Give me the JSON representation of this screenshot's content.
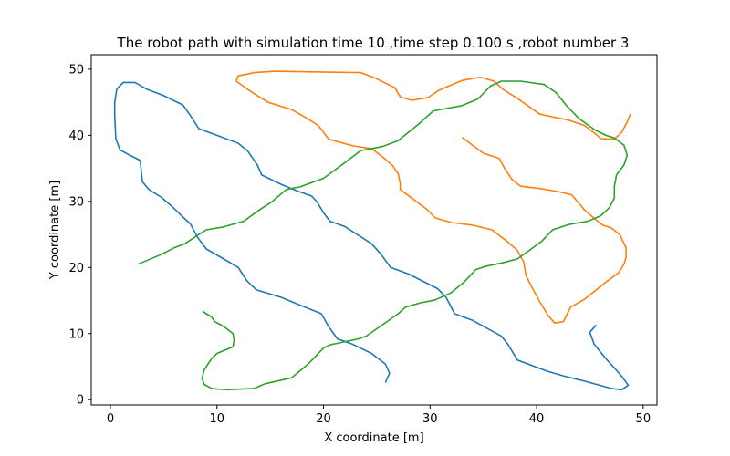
{
  "chart_data": {
    "type": "line",
    "title": "The robot path with simulation time 10 ,time step 0.100 s ,robot number 3",
    "xlabel": "X coordinate [m]",
    "ylabel": "Y coordinate [m]",
    "xlim": [
      -1.8,
      51.3
    ],
    "ylim": [
      -0.8,
      52.2
    ],
    "xticks": [
      0,
      10,
      20,
      30,
      40,
      50
    ],
    "yticks": [
      0,
      10,
      20,
      30,
      40,
      50
    ],
    "grid": false,
    "series": [
      {
        "color": "#1f77b4",
        "points": [
          [
            25.8,
            2.6
          ],
          [
            26.2,
            4.0
          ],
          [
            25.8,
            5.4
          ],
          [
            24.5,
            7.0
          ],
          [
            22.7,
            8.4
          ],
          [
            21.3,
            9.2
          ],
          [
            20.5,
            11.0
          ],
          [
            19.8,
            13.0
          ],
          [
            17.8,
            14.3
          ],
          [
            16.0,
            15.5
          ],
          [
            13.7,
            16.6
          ],
          [
            12.8,
            18.0
          ],
          [
            12.0,
            20.0
          ],
          [
            10.2,
            21.7
          ],
          [
            9.0,
            22.8
          ],
          [
            8.2,
            24.5
          ],
          [
            7.5,
            26.6
          ],
          [
            6.7,
            27.8
          ],
          [
            5.8,
            29.2
          ],
          [
            4.8,
            30.6
          ],
          [
            3.6,
            31.8
          ],
          [
            3.0,
            33.0
          ],
          [
            2.9,
            34.5
          ],
          [
            2.8,
            36.2
          ],
          [
            1.8,
            37.0
          ],
          [
            0.9,
            37.8
          ],
          [
            0.5,
            39.5
          ],
          [
            0.4,
            43.0
          ],
          [
            0.4,
            45.0
          ],
          [
            0.6,
            47.0
          ],
          [
            1.2,
            48.0
          ],
          [
            2.3,
            48.0
          ],
          [
            3.4,
            47.0
          ],
          [
            5.0,
            46.0
          ],
          [
            6.8,
            44.6
          ],
          [
            7.5,
            43.0
          ],
          [
            8.3,
            41.0
          ],
          [
            10.0,
            40.0
          ],
          [
            12.0,
            38.8
          ],
          [
            12.9,
            37.6
          ],
          [
            13.8,
            35.5
          ],
          [
            14.2,
            34.0
          ],
          [
            16.0,
            32.6
          ],
          [
            17.5,
            31.6
          ],
          [
            18.9,
            30.8
          ],
          [
            19.4,
            29.9
          ],
          [
            20.0,
            28.3
          ],
          [
            20.6,
            27.0
          ],
          [
            22.0,
            26.2
          ],
          [
            24.5,
            23.6
          ],
          [
            25.3,
            22.2
          ],
          [
            26.3,
            20.0
          ],
          [
            28.0,
            19.0
          ],
          [
            30.7,
            16.8
          ],
          [
            31.5,
            15.5
          ],
          [
            32.3,
            13.0
          ],
          [
            34.0,
            12.0
          ],
          [
            36.7,
            9.6
          ],
          [
            37.3,
            8.4
          ],
          [
            38.2,
            6.0
          ],
          [
            39.5,
            5.2
          ],
          [
            41.0,
            4.3
          ],
          [
            42.5,
            3.6
          ],
          [
            44.5,
            2.8
          ],
          [
            47.0,
            1.7
          ],
          [
            48.0,
            1.5
          ],
          [
            48.6,
            2.2
          ],
          [
            48.0,
            3.5
          ],
          [
            47.3,
            4.8
          ],
          [
            46.5,
            6.2
          ],
          [
            45.4,
            8.4
          ],
          [
            45.0,
            10.2
          ],
          [
            45.6,
            11.3
          ]
        ]
      },
      {
        "color": "#ff7f0e",
        "points": [
          [
            11.8,
            48.2
          ],
          [
            12.0,
            49.0
          ],
          [
            13.5,
            49.5
          ],
          [
            15.5,
            49.7
          ],
          [
            19.0,
            49.6
          ],
          [
            23.5,
            49.5
          ],
          [
            24.8,
            48.7
          ],
          [
            26.7,
            47.2
          ],
          [
            27.2,
            45.8
          ],
          [
            28.3,
            45.3
          ],
          [
            29.8,
            45.7
          ],
          [
            30.8,
            46.8
          ],
          [
            33.0,
            48.3
          ],
          [
            34.7,
            48.8
          ],
          [
            36.0,
            48.2
          ],
          [
            36.8,
            47.0
          ],
          [
            38.0,
            45.8
          ],
          [
            40.3,
            43.2
          ],
          [
            43.0,
            42.3
          ],
          [
            44.5,
            41.5
          ],
          [
            45.7,
            40.0
          ],
          [
            46.0,
            39.5
          ],
          [
            47.3,
            39.4
          ],
          [
            48.0,
            40.5
          ],
          [
            48.5,
            42.0
          ],
          [
            48.8,
            43.2
          ]
        ],
        "points_b": [
          [
            11.8,
            48.2
          ],
          [
            13.3,
            46.5
          ],
          [
            14.8,
            45.0
          ],
          [
            17.0,
            43.9
          ],
          [
            18.2,
            42.8
          ],
          [
            19.5,
            41.5
          ],
          [
            20.5,
            39.4
          ],
          [
            22.8,
            38.4
          ],
          [
            24.5,
            38.0
          ],
          [
            25.5,
            36.8
          ],
          [
            26.5,
            35.4
          ],
          [
            27.0,
            34.2
          ],
          [
            27.2,
            32.7
          ],
          [
            27.2,
            31.8
          ],
          [
            28.7,
            30.0
          ],
          [
            29.7,
            28.8
          ],
          [
            30.5,
            27.5
          ],
          [
            32.0,
            26.8
          ],
          [
            34.0,
            26.4
          ],
          [
            35.8,
            25.7
          ],
          [
            37.2,
            24.0
          ],
          [
            38.2,
            22.6
          ],
          [
            38.8,
            20.8
          ],
          [
            39.0,
            18.8
          ],
          [
            39.5,
            17.2
          ],
          [
            40.3,
            14.8
          ],
          [
            41.1,
            12.7
          ],
          [
            41.7,
            11.6
          ],
          [
            42.5,
            11.8
          ],
          [
            43.2,
            14.0
          ],
          [
            44.5,
            15.2
          ],
          [
            45.5,
            16.5
          ],
          [
            46.5,
            17.8
          ],
          [
            47.7,
            19.2
          ],
          [
            48.2,
            20.5
          ],
          [
            48.4,
            21.5
          ],
          [
            48.4,
            23.0
          ],
          [
            47.8,
            25.0
          ],
          [
            47.0,
            26.0
          ],
          [
            46.2,
            26.4
          ],
          [
            45.5,
            27.3
          ],
          [
            44.5,
            28.7
          ],
          [
            43.3,
            31.0
          ],
          [
            42.0,
            31.5
          ],
          [
            40.5,
            31.9
          ],
          [
            38.5,
            32.3
          ],
          [
            37.7,
            33.3
          ],
          [
            37.0,
            35.0
          ],
          [
            36.5,
            36.5
          ],
          [
            35.0,
            37.3
          ],
          [
            33.0,
            39.7
          ]
        ]
      },
      {
        "color": "#2ca02c",
        "points": [
          [
            2.6,
            20.5
          ],
          [
            4.8,
            22.0
          ],
          [
            6.0,
            23.0
          ],
          [
            7.0,
            23.6
          ],
          [
            8.3,
            25.0
          ],
          [
            9.0,
            25.7
          ],
          [
            10.5,
            26.1
          ],
          [
            12.5,
            27.0
          ],
          [
            13.8,
            28.5
          ],
          [
            15.2,
            30.0
          ],
          [
            16.5,
            31.8
          ],
          [
            17.8,
            32.2
          ],
          [
            20.0,
            33.5
          ],
          [
            21.7,
            35.5
          ],
          [
            23.5,
            37.7
          ],
          [
            25.5,
            38.3
          ],
          [
            27.0,
            39.2
          ],
          [
            29.0,
            41.8
          ],
          [
            30.3,
            43.7
          ],
          [
            33.0,
            44.5
          ],
          [
            34.5,
            45.5
          ],
          [
            35.7,
            47.5
          ],
          [
            36.7,
            48.2
          ],
          [
            38.5,
            48.2
          ],
          [
            40.7,
            47.7
          ],
          [
            41.8,
            46.5
          ],
          [
            42.8,
            44.5
          ],
          [
            44.0,
            42.5
          ],
          [
            45.5,
            40.8
          ],
          [
            46.5,
            40.0
          ],
          [
            47.3,
            39.6
          ],
          [
            48.2,
            38.5
          ],
          [
            48.5,
            37.0
          ],
          [
            48.2,
            35.5
          ],
          [
            47.5,
            34.0
          ],
          [
            47.3,
            32.3
          ],
          [
            47.3,
            30.5
          ],
          [
            46.8,
            29.0
          ],
          [
            46.0,
            27.8
          ],
          [
            44.8,
            27.0
          ],
          [
            43.0,
            26.5
          ],
          [
            41.5,
            25.7
          ],
          [
            40.5,
            24.0
          ],
          [
            39.5,
            22.8
          ],
          [
            38.2,
            21.3
          ],
          [
            36.8,
            20.7
          ],
          [
            35.3,
            20.2
          ],
          [
            34.3,
            19.7
          ],
          [
            33.2,
            17.8
          ],
          [
            32.0,
            16.2
          ],
          [
            30.5,
            15.1
          ],
          [
            29.0,
            14.6
          ],
          [
            27.7,
            14.0
          ],
          [
            27.0,
            13.0
          ],
          [
            25.6,
            11.4
          ],
          [
            24.0,
            9.6
          ],
          [
            23.3,
            9.2
          ],
          [
            20.6,
            8.3
          ],
          [
            20.0,
            7.8
          ],
          [
            18.5,
            5.3
          ],
          [
            17.0,
            3.3
          ],
          [
            14.5,
            2.4
          ],
          [
            13.5,
            1.7
          ],
          [
            11.0,
            1.5
          ],
          [
            10.0,
            1.6
          ],
          [
            9.5,
            1.7
          ],
          [
            8.8,
            2.3
          ],
          [
            8.6,
            3.2
          ],
          [
            8.8,
            4.5
          ],
          [
            9.2,
            5.5
          ],
          [
            9.5,
            6.2
          ],
          [
            10.0,
            7.0
          ],
          [
            11.5,
            8.0
          ],
          [
            11.6,
            9.0
          ],
          [
            11.5,
            10.0
          ],
          [
            10.7,
            11.0
          ],
          [
            9.8,
            11.8
          ],
          [
            9.5,
            12.5
          ],
          [
            8.8,
            13.2
          ],
          [
            8.7,
            13.4
          ]
        ]
      }
    ]
  }
}
